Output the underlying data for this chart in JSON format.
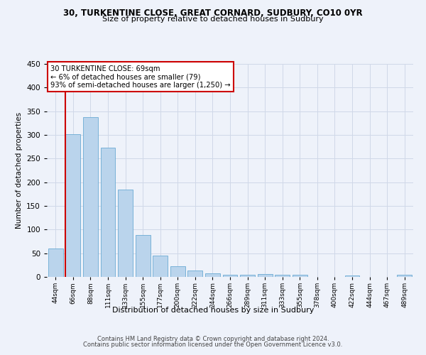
{
  "title1": "30, TURKENTINE CLOSE, GREAT CORNARD, SUDBURY, CO10 0YR",
  "title2": "Size of property relative to detached houses in Sudbury",
  "xlabel": "Distribution of detached houses by size in Sudbury",
  "ylabel": "Number of detached properties",
  "footer1": "Contains HM Land Registry data © Crown copyright and database right 2024.",
  "footer2": "Contains public sector information licensed under the Open Government Licence v3.0.",
  "annotation_line1": "30 TURKENTINE CLOSE: 69sqm",
  "annotation_line2": "← 6% of detached houses are smaller (79)",
  "annotation_line3": "93% of semi-detached houses are larger (1,250) →",
  "bar_labels": [
    "44sqm",
    "66sqm",
    "88sqm",
    "111sqm",
    "133sqm",
    "155sqm",
    "177sqm",
    "200sqm",
    "222sqm",
    "244sqm",
    "266sqm",
    "289sqm",
    "311sqm",
    "333sqm",
    "355sqm",
    "378sqm",
    "400sqm",
    "422sqm",
    "444sqm",
    "467sqm",
    "489sqm"
  ],
  "bar_values": [
    60,
    302,
    338,
    273,
    185,
    88,
    45,
    22,
    13,
    8,
    5,
    5,
    6,
    5,
    4,
    0,
    0,
    3,
    0,
    0,
    4
  ],
  "bar_color": "#bad4ec",
  "bar_edge_color": "#6aaad4",
  "annotation_box_color": "#cc0000",
  "vline_color": "#cc0000",
  "bg_color": "#eef2fa",
  "grid_color": "#d0d8e8",
  "ylim": [
    0,
    450
  ],
  "yticks": [
    0,
    50,
    100,
    150,
    200,
    250,
    300,
    350,
    400,
    450
  ],
  "vline_x": 0.575
}
